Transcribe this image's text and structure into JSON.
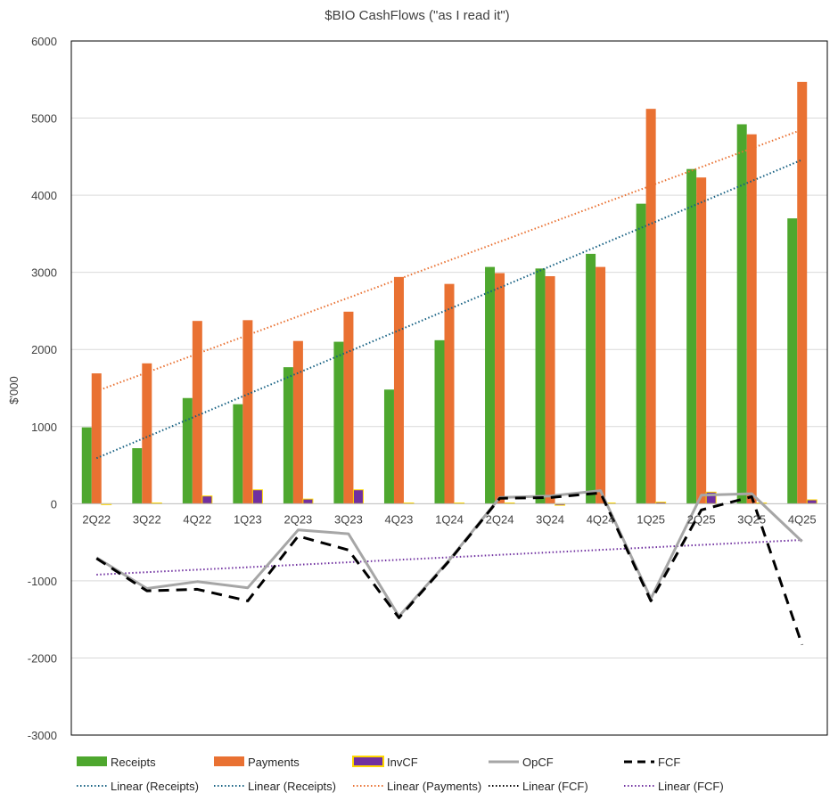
{
  "chart_data": {
    "type": "bar",
    "title": "$BIO CashFlows (\"as I read it\")",
    "ylabel": "$'000",
    "xlabel": "",
    "ylim": [
      -3000,
      6000
    ],
    "yticks": [
      6000,
      5000,
      4000,
      3000,
      2000,
      1000,
      0,
      -1000,
      -2000,
      -3000
    ],
    "grid": true,
    "legend_position": "bottom",
    "categories": [
      "2Q22",
      "3Q22",
      "4Q22",
      "1Q23",
      "2Q23",
      "3Q23",
      "4Q23",
      "1Q24",
      "2Q24",
      "3Q24",
      "4Q24",
      "1Q25",
      "2Q25",
      "3Q25",
      "4Q25"
    ],
    "series": [
      {
        "name": "Receipts",
        "kind": "bar",
        "color": "#4ea72e",
        "values": [
          990,
          720,
          1370,
          1290,
          1770,
          2100,
          1480,
          2120,
          3070,
          3050,
          3240,
          3890,
          4340,
          4920,
          3700
        ]
      },
      {
        "name": "Payments",
        "kind": "bar",
        "color": "#e97132",
        "values": [
          1690,
          1820,
          2370,
          2380,
          2110,
          2490,
          2940,
          2850,
          2990,
          2950,
          3070,
          5120,
          4230,
          4790,
          5470
        ]
      },
      {
        "name": "InvCF",
        "kind": "bar",
        "color": "#7030a0",
        "edge": "#ffd700",
        "values": [
          -10,
          10,
          100,
          180,
          60,
          180,
          10,
          10,
          10,
          -20,
          10,
          20,
          150,
          10,
          50
        ]
      },
      {
        "name": "OpCF",
        "kind": "line",
        "color": "#a6a6a6",
        "values": [
          -700,
          -1100,
          -1010,
          -1090,
          -340,
          -390,
          -1460,
          -730,
          80,
          100,
          170,
          -1230,
          110,
          130,
          -490
        ]
      },
      {
        "name": "FCF",
        "kind": "dashed-line",
        "color": "#000000",
        "values": [
          -710,
          -1130,
          -1110,
          -1260,
          -420,
          -600,
          -1480,
          -740,
          70,
          80,
          140,
          -1260,
          -80,
          90,
          -1830
        ]
      }
    ],
    "trendlines": [
      {
        "label": "Linear (Receipts)",
        "color": "#156082",
        "start": 590,
        "end": 4460,
        "draw": true
      },
      {
        "label": "Linear (Receipts)",
        "color": "#156082",
        "start": 590,
        "end": 4460,
        "draw": false
      },
      {
        "label": "Linear (Payments)",
        "color": "#e97132",
        "start": 1460,
        "end": 4850,
        "draw": true
      },
      {
        "label": "Linear (FCF)",
        "color": "#000000",
        "start": -920,
        "end": -470,
        "draw": false
      },
      {
        "label": "Linear (FCF)",
        "color": "#7030a0",
        "start": -920,
        "end": -470,
        "draw": true
      }
    ]
  }
}
